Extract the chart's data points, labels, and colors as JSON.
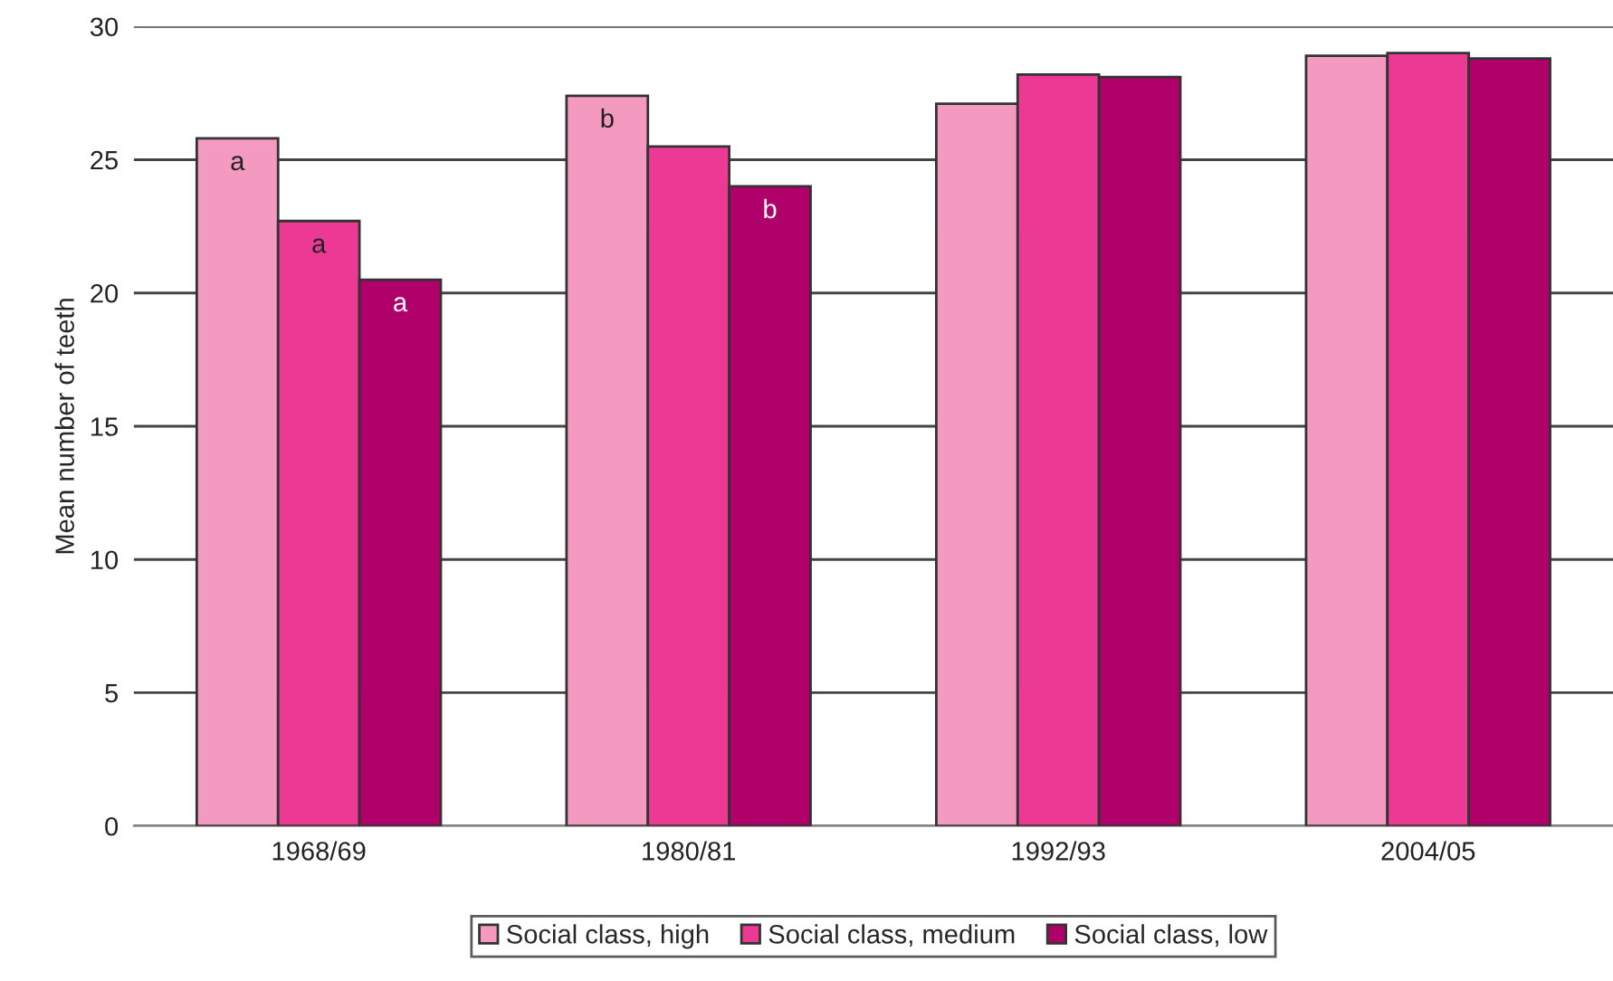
{
  "chart_data": {
    "type": "bar",
    "ylabel": "Mean number of teeth",
    "categories": [
      "1968/69",
      "1980/81",
      "1992/93",
      "2004/05"
    ],
    "series": [
      {
        "name": "Social class, high",
        "color": "#f49ac1",
        "values": [
          25.8,
          27.4,
          27.1,
          28.9
        ],
        "value_labels": [
          "a",
          "b",
          null,
          null
        ]
      },
      {
        "name": "Social class, medium",
        "color": "#ec3993",
        "values": [
          22.7,
          25.5,
          28.2,
          29.0
        ],
        "value_labels": [
          "a",
          null,
          null,
          null
        ]
      },
      {
        "name": "Social class, low",
        "color": "#b0006a",
        "values": [
          20.5,
          24.0,
          28.1,
          28.8
        ],
        "value_labels": [
          "a",
          "b",
          null,
          null
        ]
      }
    ],
    "ylim": [
      0,
      30
    ],
    "yticks": [
      0,
      5,
      10,
      15,
      20,
      25,
      30
    ],
    "grid": "y",
    "legend": "bottom"
  }
}
